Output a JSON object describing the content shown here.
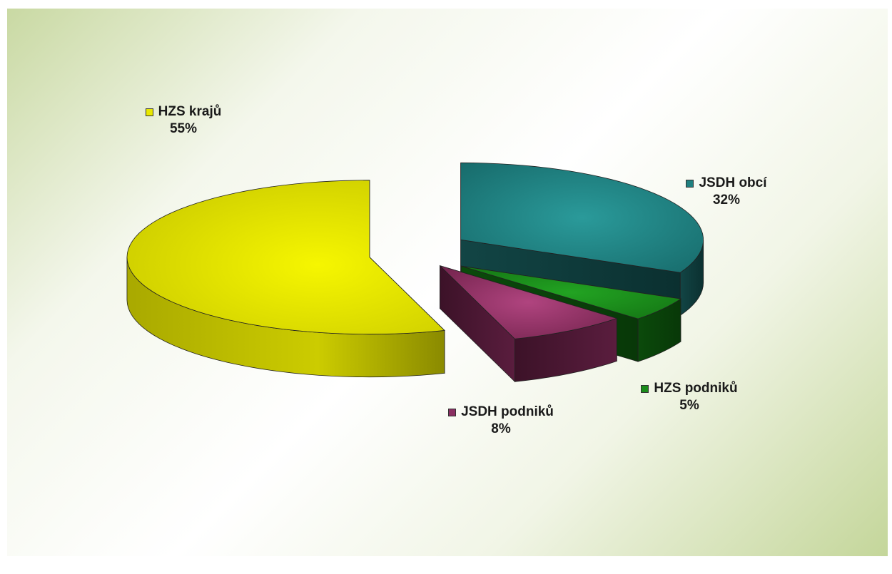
{
  "chart_data": {
    "type": "pie",
    "title": "",
    "categories": [
      "HZS krajů",
      "JSDH obcí",
      "HZS podniků",
      "JSDH podniků"
    ],
    "values": [
      55,
      32,
      5,
      8
    ],
    "labels": [
      "55%",
      "32%",
      "5%",
      "8%"
    ],
    "colors": [
      "#e8e800",
      "#1f8080",
      "#1a8c1a",
      "#8a2f62"
    ],
    "exploded": true,
    "three_d": true,
    "legend": "labels-beside-slices"
  }
}
